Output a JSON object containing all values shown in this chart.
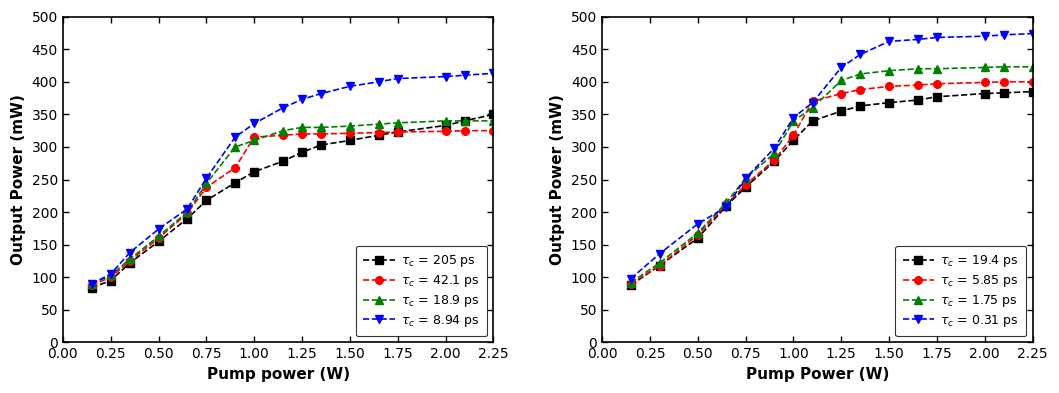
{
  "left": {
    "xlabel": "Pump power (W)",
    "ylabel": "Output Power (mW)",
    "xlim": [
      0.0,
      2.25
    ],
    "ylim": [
      0,
      500
    ],
    "xticks": [
      0.0,
      0.25,
      0.5,
      0.75,
      1.0,
      1.25,
      1.5,
      1.75,
      2.0,
      2.25
    ],
    "yticks": [
      0,
      50,
      100,
      150,
      200,
      250,
      300,
      350,
      400,
      450,
      500
    ],
    "series": [
      {
        "label": "$\\tau_c$ = 205 ps",
        "color": "black",
        "marker": "s",
        "linestyle": "--",
        "x": [
          0.15,
          0.25,
          0.35,
          0.5,
          0.65,
          0.75,
          0.9,
          1.0,
          1.15,
          1.25,
          1.35,
          1.5,
          1.65,
          1.75,
          2.0,
          2.1,
          2.25
        ],
        "y": [
          84,
          95,
          122,
          155,
          190,
          218,
          245,
          262,
          278,
          292,
          303,
          310,
          318,
          323,
          333,
          340,
          350
        ]
      },
      {
        "label": "$\\tau_c$ = 42.1 ps",
        "color": "red",
        "marker": "o",
        "linestyle": "--",
        "x": [
          0.15,
          0.25,
          0.35,
          0.5,
          0.65,
          0.75,
          0.9,
          1.0,
          1.15,
          1.25,
          1.35,
          1.5,
          1.65,
          1.75,
          2.0,
          2.1,
          2.25
        ],
        "y": [
          88,
          100,
          125,
          160,
          198,
          238,
          268,
          315,
          318,
          320,
          320,
          321,
          322,
          323,
          324,
          325,
          325
        ]
      },
      {
        "label": "$\\tau_c$ = 18.9 ps",
        "color": "green",
        "marker": "^",
        "linestyle": "--",
        "x": [
          0.15,
          0.25,
          0.35,
          0.5,
          0.65,
          0.75,
          0.9,
          1.0,
          1.15,
          1.25,
          1.35,
          1.5,
          1.65,
          1.75,
          2.0,
          2.1,
          2.25
        ],
        "y": [
          90,
          103,
          128,
          163,
          200,
          244,
          300,
          310,
          325,
          330,
          330,
          332,
          335,
          337,
          340,
          340,
          340
        ]
      },
      {
        "label": "$\\tau_c$ = 8.94 ps",
        "color": "blue",
        "marker": "v",
        "linestyle": "--",
        "x": [
          0.15,
          0.25,
          0.35,
          0.5,
          0.65,
          0.75,
          0.9,
          1.0,
          1.15,
          1.25,
          1.35,
          1.5,
          1.65,
          1.75,
          2.0,
          2.1,
          2.25
        ],
        "y": [
          90,
          105,
          138,
          174,
          205,
          252,
          315,
          336,
          360,
          373,
          382,
          393,
          400,
          405,
          408,
          410,
          413
        ]
      }
    ]
  },
  "right": {
    "xlabel": "Pump Power (W)",
    "ylabel": "Output Power (mW)",
    "xlim": [
      0.0,
      2.25
    ],
    "ylim": [
      0,
      500
    ],
    "xticks": [
      0.0,
      0.25,
      0.5,
      0.75,
      1.0,
      1.25,
      1.5,
      1.75,
      2.0,
      2.25
    ],
    "yticks": [
      0,
      50,
      100,
      150,
      200,
      250,
      300,
      350,
      400,
      450,
      500
    ],
    "series": [
      {
        "label": "$\\tau_c$ = 19.4 ps",
        "color": "black",
        "marker": "s",
        "linestyle": "--",
        "x": [
          0.15,
          0.3,
          0.5,
          0.65,
          0.75,
          0.9,
          1.0,
          1.1,
          1.25,
          1.35,
          1.5,
          1.65,
          1.75,
          2.0,
          2.1,
          2.25
        ],
        "y": [
          88,
          118,
          160,
          210,
          238,
          278,
          310,
          340,
          355,
          363,
          368,
          372,
          377,
          382,
          383,
          385
        ]
      },
      {
        "label": "$\\tau_c$ = 5.85 ps",
        "color": "red",
        "marker": "o",
        "linestyle": "--",
        "x": [
          0.15,
          0.3,
          0.5,
          0.65,
          0.75,
          0.9,
          1.0,
          1.1,
          1.25,
          1.35,
          1.5,
          1.65,
          1.75,
          2.0,
          2.1,
          2.25
        ],
        "y": [
          90,
          118,
          165,
          212,
          242,
          280,
          318,
          370,
          382,
          388,
          393,
          395,
          397,
          399,
          400,
          400
        ]
      },
      {
        "label": "$\\tau_c$ = 1.75 ps",
        "color": "green",
        "marker": "^",
        "linestyle": "--",
        "x": [
          0.15,
          0.3,
          0.5,
          0.65,
          0.75,
          0.9,
          1.0,
          1.1,
          1.25,
          1.35,
          1.5,
          1.65,
          1.75,
          2.0,
          2.1,
          2.25
        ],
        "y": [
          92,
          122,
          168,
          215,
          252,
          290,
          340,
          360,
          402,
          412,
          417,
          420,
          420,
          422,
          423,
          423
        ]
      },
      {
        "label": "$\\tau_c$ = 0.31 ps",
        "color": "blue",
        "marker": "v",
        "linestyle": "--",
        "x": [
          0.15,
          0.3,
          0.5,
          0.65,
          0.75,
          0.9,
          1.0,
          1.1,
          1.25,
          1.35,
          1.5,
          1.65,
          1.75,
          2.0,
          2.1,
          2.25
        ],
        "y": [
          98,
          136,
          182,
          208,
          252,
          298,
          345,
          368,
          422,
          442,
          462,
          465,
          468,
          470,
          472,
          474
        ]
      }
    ]
  },
  "fig_width": 10.59,
  "fig_height": 3.93,
  "background_color": "#ffffff"
}
